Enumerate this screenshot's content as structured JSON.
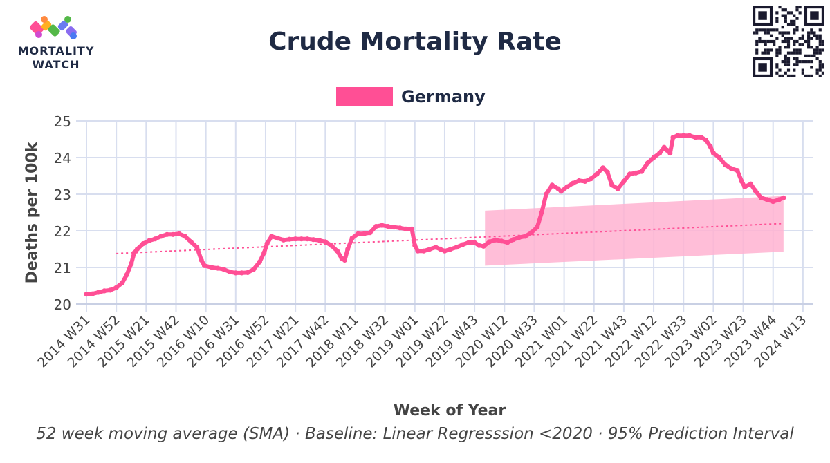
{
  "header": {
    "title": "Crude Mortality Rate",
    "logo_line1": "MORTALITY",
    "logo_line2": "WATCH"
  },
  "footnote": "52 week moving average (SMA) · Baseline: Linear Regresssion <2020 · 95% Prediction Interval",
  "colors": {
    "series": "#ff4f95",
    "band": "#ffb3d1",
    "grid": "#d8deef",
    "axis": "#c9d0e4",
    "text": "#444444"
  },
  "chart_data": {
    "type": "line",
    "title": "Crude Mortality Rate",
    "xlabel": "Week of Year",
    "ylabel": "Deaths per 100k",
    "ylim": [
      20,
      25
    ],
    "yticks": [
      20,
      21,
      22,
      23,
      24,
      25
    ],
    "grid": true,
    "legend": {
      "position": "top-center",
      "entries": [
        "Germany"
      ]
    },
    "categories": [
      "2014 W31",
      "2014 W52",
      "2015 W21",
      "2015 W42",
      "2016 W10",
      "2016 W31",
      "2016 W52",
      "2017 W21",
      "2017 W42",
      "2018 W11",
      "2018 W32",
      "2019 W01",
      "2019 W22",
      "2019 W43",
      "2020 W12",
      "2020 W33",
      "2021 W01",
      "2021 W22",
      "2021 W43",
      "2022 W12",
      "2022 W33",
      "2023 W02",
      "2023 W23",
      "2023 W44",
      "2024 W13"
    ],
    "series": [
      {
        "name": "Germany",
        "kind": "line",
        "points": [
          [
            0,
            20.27
          ],
          [
            0.2,
            20.28
          ],
          [
            0.4,
            20.32
          ],
          [
            0.6,
            20.36
          ],
          [
            0.8,
            20.38
          ],
          [
            1.0,
            20.45
          ],
          [
            1.2,
            20.58
          ],
          [
            1.35,
            20.8
          ],
          [
            1.5,
            21.1
          ],
          [
            1.6,
            21.4
          ],
          [
            1.7,
            21.5
          ],
          [
            1.9,
            21.65
          ],
          [
            2.1,
            21.73
          ],
          [
            2.3,
            21.78
          ],
          [
            2.5,
            21.85
          ],
          [
            2.7,
            21.9
          ],
          [
            2.9,
            21.9
          ],
          [
            3.1,
            21.92
          ],
          [
            3.3,
            21.85
          ],
          [
            3.5,
            21.7
          ],
          [
            3.7,
            21.55
          ],
          [
            3.85,
            21.2
          ],
          [
            3.95,
            21.05
          ],
          [
            4.2,
            21.0
          ],
          [
            4.4,
            20.98
          ],
          [
            4.6,
            20.95
          ],
          [
            4.8,
            20.88
          ],
          [
            5.0,
            20.85
          ],
          [
            5.2,
            20.85
          ],
          [
            5.4,
            20.86
          ],
          [
            5.6,
            20.95
          ],
          [
            5.8,
            21.15
          ],
          [
            5.95,
            21.4
          ],
          [
            6.05,
            21.65
          ],
          [
            6.2,
            21.85
          ],
          [
            6.4,
            21.8
          ],
          [
            6.6,
            21.75
          ],
          [
            6.8,
            21.77
          ],
          [
            7.0,
            21.78
          ],
          [
            7.2,
            21.78
          ],
          [
            7.4,
            21.78
          ],
          [
            7.6,
            21.76
          ],
          [
            7.8,
            21.74
          ],
          [
            8.0,
            21.7
          ],
          [
            8.2,
            21.6
          ],
          [
            8.4,
            21.45
          ],
          [
            8.55,
            21.25
          ],
          [
            8.65,
            21.2
          ],
          [
            8.75,
            21.5
          ],
          [
            8.9,
            21.8
          ],
          [
            9.1,
            21.92
          ],
          [
            9.3,
            21.92
          ],
          [
            9.5,
            21.95
          ],
          [
            9.7,
            22.12
          ],
          [
            9.9,
            22.15
          ],
          [
            10.1,
            22.12
          ],
          [
            10.3,
            22.1
          ],
          [
            10.5,
            22.08
          ],
          [
            10.7,
            22.05
          ],
          [
            10.9,
            22.05
          ],
          [
            11.0,
            21.6
          ],
          [
            11.1,
            21.45
          ],
          [
            11.3,
            21.45
          ],
          [
            11.5,
            21.5
          ],
          [
            11.7,
            21.55
          ],
          [
            11.85,
            21.5
          ],
          [
            12.0,
            21.45
          ],
          [
            12.2,
            21.5
          ],
          [
            12.4,
            21.55
          ],
          [
            12.6,
            21.62
          ],
          [
            12.8,
            21.68
          ],
          [
            13.0,
            21.68
          ],
          [
            13.15,
            21.6
          ],
          [
            13.3,
            21.58
          ],
          [
            13.5,
            21.7
          ],
          [
            13.7,
            21.75
          ],
          [
            13.9,
            21.72
          ],
          [
            14.1,
            21.68
          ],
          [
            14.3,
            21.76
          ],
          [
            14.5,
            21.82
          ],
          [
            14.7,
            21.85
          ],
          [
            14.9,
            21.95
          ],
          [
            15.1,
            22.1
          ],
          [
            15.25,
            22.5
          ],
          [
            15.4,
            23.0
          ],
          [
            15.6,
            23.25
          ],
          [
            15.8,
            23.15
          ],
          [
            15.9,
            23.08
          ],
          [
            16.1,
            23.2
          ],
          [
            16.3,
            23.3
          ],
          [
            16.5,
            23.37
          ],
          [
            16.7,
            23.35
          ],
          [
            16.9,
            23.42
          ],
          [
            17.1,
            23.55
          ],
          [
            17.3,
            23.72
          ],
          [
            17.45,
            23.6
          ],
          [
            17.6,
            23.25
          ],
          [
            17.8,
            23.15
          ],
          [
            18.0,
            23.35
          ],
          [
            18.2,
            23.55
          ],
          [
            18.4,
            23.58
          ],
          [
            18.6,
            23.62
          ],
          [
            18.8,
            23.85
          ],
          [
            19.0,
            24.0
          ],
          [
            19.2,
            24.12
          ],
          [
            19.35,
            24.28
          ],
          [
            19.45,
            24.2
          ],
          [
            19.55,
            24.12
          ],
          [
            19.65,
            24.55
          ],
          [
            19.8,
            24.6
          ],
          [
            20.0,
            24.6
          ],
          [
            20.2,
            24.6
          ],
          [
            20.4,
            24.55
          ],
          [
            20.6,
            24.55
          ],
          [
            20.75,
            24.48
          ],
          [
            20.9,
            24.3
          ],
          [
            21.0,
            24.12
          ],
          [
            21.2,
            24.0
          ],
          [
            21.4,
            23.8
          ],
          [
            21.6,
            23.7
          ],
          [
            21.8,
            23.65
          ],
          [
            21.95,
            23.35
          ],
          [
            22.05,
            23.2
          ],
          [
            22.25,
            23.28
          ],
          [
            22.4,
            23.1
          ],
          [
            22.6,
            22.9
          ],
          [
            22.8,
            22.85
          ],
          [
            23.0,
            22.8
          ],
          [
            23.2,
            22.85
          ],
          [
            23.35,
            22.9
          ]
        ]
      },
      {
        "name": "Baseline",
        "kind": "trend",
        "points": [
          [
            1.0,
            21.38
          ],
          [
            23.35,
            22.2
          ]
        ]
      },
      {
        "name": "95% Prediction Interval",
        "kind": "band",
        "x": [
          13.35,
          23.35
        ],
        "upper": [
          22.55,
          22.95
        ],
        "lower": [
          21.05,
          21.43
        ]
      }
    ]
  }
}
